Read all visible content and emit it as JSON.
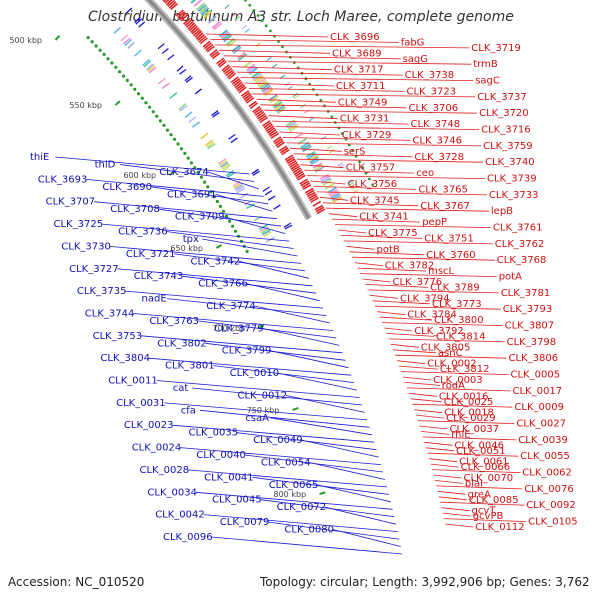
{
  "title": "Clostridium botulinum A3 str. Loch Maree, complete genome",
  "footer": {
    "accession": "Accession: NC_010520",
    "topology": "Topology: circular; Length: 3,992,906 bp; Genes: 3,762"
  },
  "colors": {
    "forward_strand": "#e02020",
    "reverse_strand": "#1a1ad0",
    "backbone": "#8a8a8a",
    "tick": "#2a9a2a"
  },
  "ticks": [
    {
      "label": "500 kbp",
      "kbp": 500
    },
    {
      "label": "550 kbp",
      "kbp": 550
    },
    {
      "label": "600 kbp",
      "kbp": 600
    },
    {
      "label": "650 kbp",
      "kbp": 650
    },
    {
      "label": "700 kbp",
      "kbp": 700
    },
    {
      "label": "750 kbp",
      "kbp": 750
    },
    {
      "label": "800 kbp",
      "kbp": 800
    }
  ],
  "reverse_labels": [
    "thiE",
    "thiD",
    "CLK_3674",
    "CLK_3693",
    "CLK_3690",
    "CLK_3691",
    "CLK_3707",
    "CLK_3708",
    "CLK_3709",
    "CLK_3725",
    "CLK_3736",
    "tpx",
    "CLK_3730",
    "CLK_3721",
    "CLK_3742",
    "CLK_3727",
    "CLK_3743",
    "CLK_3766",
    "CLK_3735",
    "nadE",
    "CLK_3774",
    "CLK_3744",
    "CLK_3763",
    "CLK_3779",
    "CLK_3753",
    "CLK_3802",
    "CLK_3799",
    "CLK_3804",
    "CLK_3801",
    "CLK_0010",
    "CLK_0011",
    "cat",
    "CLK_0012",
    "CLK_0031",
    "cfa",
    "csaA",
    "CLK_0023",
    "CLK_0035",
    "CLK_0049",
    "CLK_0024",
    "CLK_0040",
    "CLK_0054",
    "CLK_0028",
    "CLK_0041",
    "CLK_0065",
    "CLK_0034",
    "CLK_0045",
    "CLK_0072",
    "CLK_0042",
    "CLK_0079",
    "CLK_0080",
    "CLK_0096"
  ],
  "forward_labels": [
    "CLK_3696",
    "fabG",
    "CLK_3719",
    "CLK_3689",
    "sagG",
    "trmB",
    "CLK_3717",
    "CLK_3738",
    "sagC",
    "CLK_3711",
    "CLK_3723",
    "CLK_3737",
    "CLK_3749",
    "CLK_3706",
    "CLK_3720",
    "CLK_3731",
    "CLK_3748",
    "CLK_3716",
    "CLK_3729",
    "CLK_3746",
    "CLK_3759",
    "serS",
    "CLK_3728",
    "CLK_3740",
    "CLK_3757",
    "ceo",
    "CLK_3739",
    "CLK_3756",
    "CLK_3765",
    "CLK_3733",
    "CLK_3745",
    "CLK_3767",
    "lepB",
    "CLK_3741",
    "pepP",
    "CLK_3761",
    "CLK_3775",
    "CLK_3751",
    "CLK_3762",
    "potB",
    "CLK_3760",
    "CLK_3768",
    "CLK_3782",
    "mscL",
    "potA",
    "CLK_3776",
    "CLK_3789",
    "CLK_3781",
    "CLK_3794",
    "CLK_3773",
    "CLK_3793",
    "CLK_3784",
    "CLK_3800",
    "CLK_3807",
    "CLK_3792",
    "CLK_3814",
    "CLK_3798",
    "CLK_3805",
    "asnC",
    "CLK_3806",
    "CLK_0002",
    "CLK_3812",
    "CLK_0005",
    "CLK_0003",
    "rodA",
    "CLK_0017",
    "CLK_0016",
    "CLK_0025",
    "CLK_0009",
    "CLK_0018",
    "CLK_0029",
    "CLK_0027",
    "CLK_0037",
    "rhlE",
    "CLK_0039",
    "CLK_0046",
    "CLK_0051",
    "CLK_0055",
    "CLK_0061",
    "CLK_0066",
    "CLK_0062",
    "CLK_0070",
    "blaI",
    "CLK_0076",
    "greA",
    "CLK_0085",
    "CLK_0092",
    "gcvT",
    "gcvPB",
    "CLK_0105",
    "CLK_0112"
  ]
}
